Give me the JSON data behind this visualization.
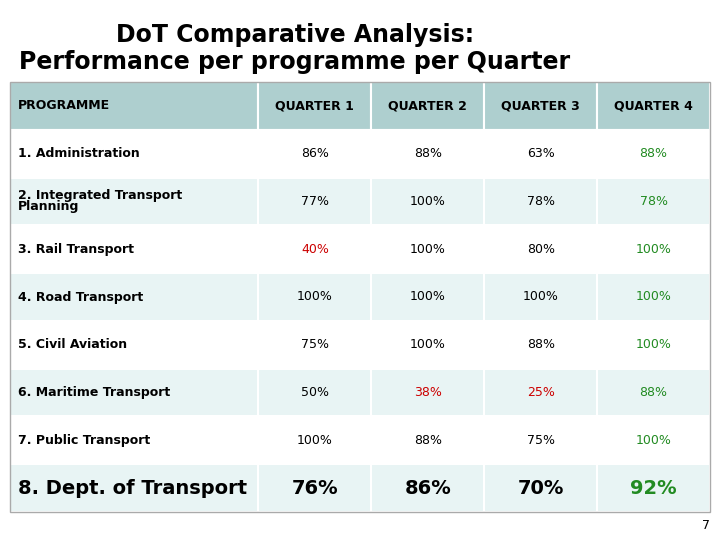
{
  "title_line1": "DoT Comparative Analysis:",
  "title_line2": "Performance per programme per Quarter",
  "header": [
    "PROGRAMME",
    "QUARTER 1",
    "QUARTER 2",
    "QUARTER 3",
    "QUARTER 4"
  ],
  "rows": [
    [
      "1. Administration",
      "86%",
      "88%",
      "63%",
      "88%"
    ],
    [
      "2. Integrated Transport\nPlanning",
      "77%",
      "100%",
      "78%",
      "78%"
    ],
    [
      "3. Rail Transport",
      "40%",
      "100%",
      "80%",
      "100%"
    ],
    [
      "4. Road Transport",
      "100%",
      "100%",
      "100%",
      "100%"
    ],
    [
      "5. Civil Aviation",
      "75%",
      "100%",
      "88%",
      "100%"
    ],
    [
      "6. Maritime Transport",
      "50%",
      "38%",
      "25%",
      "88%"
    ],
    [
      "7. Public Transport",
      "100%",
      "88%",
      "75%",
      "100%"
    ],
    [
      "8. Dept. of Transport",
      "76%",
      "86%",
      "70%",
      "92%"
    ]
  ],
  "cell_colors": [
    [
      "black",
      "black",
      "black",
      "black",
      "green"
    ],
    [
      "black",
      "black",
      "black",
      "black",
      "green"
    ],
    [
      "black",
      "red",
      "black",
      "black",
      "green"
    ],
    [
      "black",
      "black",
      "black",
      "black",
      "green"
    ],
    [
      "black",
      "black",
      "black",
      "black",
      "green"
    ],
    [
      "black",
      "black",
      "red",
      "red",
      "green"
    ],
    [
      "black",
      "black",
      "black",
      "black",
      "green"
    ],
    [
      "black",
      "black",
      "black",
      "black",
      "green"
    ]
  ],
  "last_row_bold": true,
  "header_bg": "#aecfcf",
  "row_bg_odd": "#ffffff",
  "row_bg_even": "#e8f4f4",
  "header_text_color": "#000000",
  "page_number": "7",
  "green_color": "#228B22",
  "red_color": "#cc0000"
}
